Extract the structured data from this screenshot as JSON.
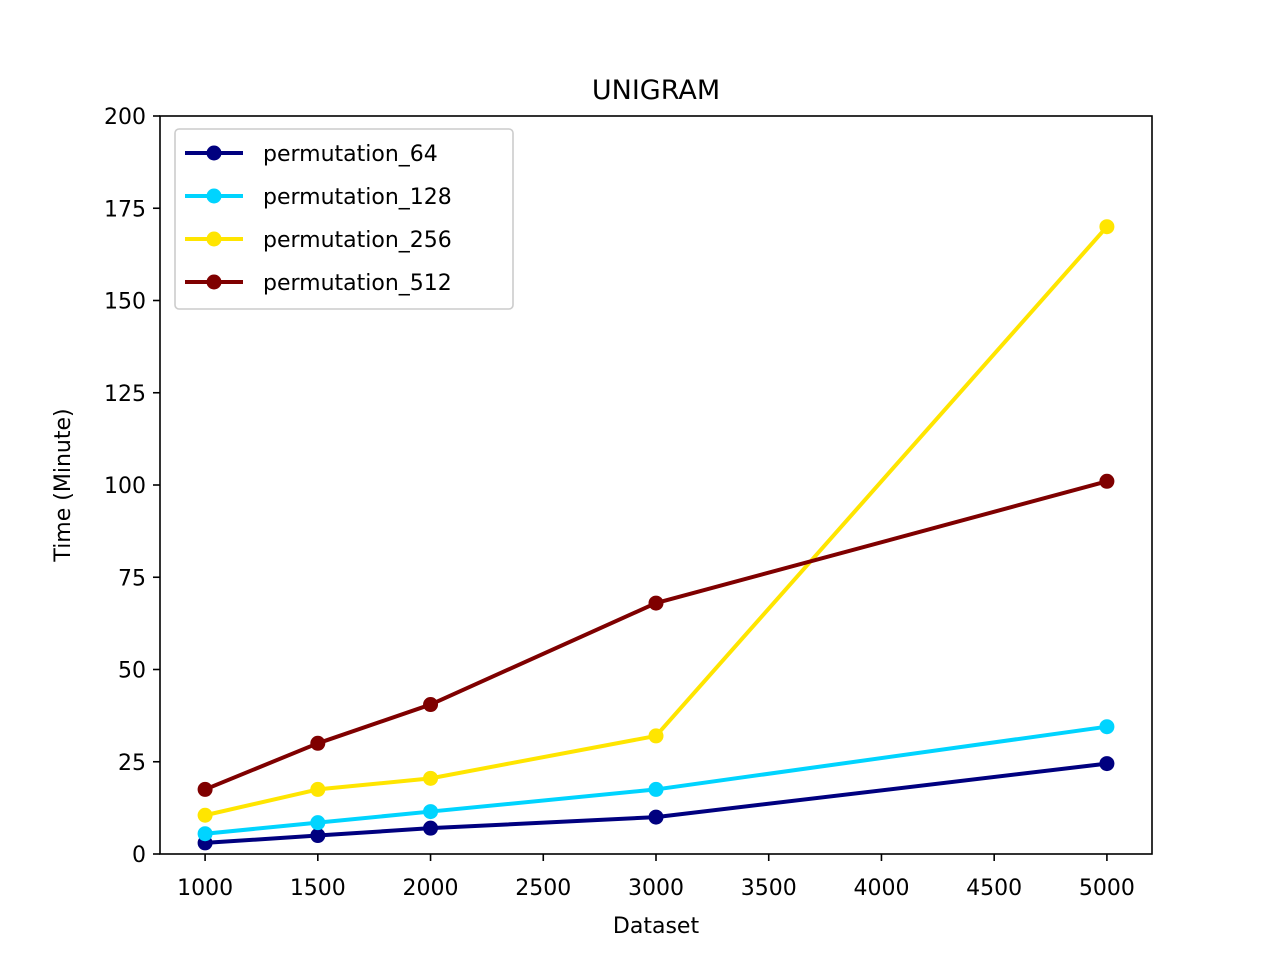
{
  "chart_data": {
    "type": "line",
    "title": "UNIGRAM",
    "xlabel": "Dataset",
    "ylabel": "Time (Minute)",
    "xlim": [
      800,
      5200
    ],
    "ylim": [
      0,
      200
    ],
    "xticks": [
      1000,
      1500,
      2000,
      2500,
      3000,
      3500,
      4000,
      4500,
      5000
    ],
    "yticks": [
      0,
      25,
      50,
      75,
      100,
      125,
      150,
      175,
      200
    ],
    "x": [
      1000,
      1500,
      2000,
      3000,
      5000
    ],
    "grid": false,
    "legend_position": "upper-left",
    "series": [
      {
        "name": "permutation_64",
        "color": "#00007f",
        "values": [
          3,
          5,
          7,
          10,
          24.5
        ]
      },
      {
        "name": "permutation_128",
        "color": "#00d4ff",
        "values": [
          5.5,
          8.5,
          11.5,
          17.5,
          34.5
        ]
      },
      {
        "name": "permutation_256",
        "color": "#ffe500",
        "values": [
          10.5,
          17.5,
          20.5,
          32,
          170
        ]
      },
      {
        "name": "permutation_512",
        "color": "#7f0000",
        "values": [
          17.5,
          30,
          40.5,
          68,
          101
        ]
      }
    ]
  }
}
